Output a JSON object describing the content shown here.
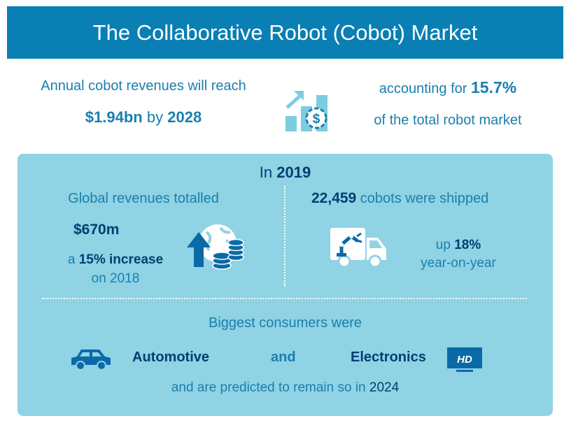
{
  "header": {
    "title": "The Collaborative Robot (Cobot) Market"
  },
  "forecast": {
    "line1": "Annual cobot revenues will reach",
    "value": "$1.94bn",
    "by_word": "by",
    "year": "2028",
    "share_prefix": "accounting for",
    "share": "15.7%",
    "share_suffix": "of the total robot market"
  },
  "year_panel": {
    "label": "In",
    "year": "2019",
    "revenue": {
      "title": "Global revenues totalled",
      "value": "$670m",
      "prefix": "a",
      "increase": "15% increase",
      "suffix": "on 2018"
    },
    "shipments": {
      "count": "22,459",
      "label": "cobots were shipped",
      "prefix": "up",
      "growth": "18%",
      "suffix": "year-on-year"
    },
    "consumers": {
      "title": "Biggest consumers were",
      "first": "Automotive",
      "and_word": "and",
      "second": "Electronics",
      "tv_badge": "HD",
      "note": "and are predicted to remain so in",
      "note_year": "2024"
    }
  },
  "icons": [
    "growth-chart-dollar-icon",
    "globe-coins-arrow-icon",
    "robot-truck-icon",
    "car-icon",
    "hd-tv-icon"
  ],
  "colors": {
    "header_bg": "#0a7fb3",
    "panel_bg": "#8fd3e4",
    "accent_blue": "#1a7fae",
    "dark_navy": "#003f73",
    "icon_light": "#7ccde0"
  }
}
